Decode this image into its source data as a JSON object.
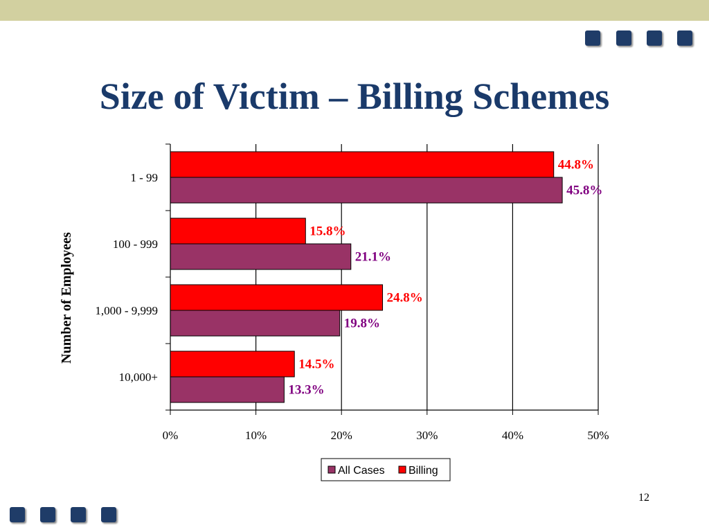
{
  "slide": {
    "title": "Size of Victim – Billing Schemes",
    "page_number": "12"
  },
  "colors": {
    "band": "#d2d0a0",
    "square": "#1f3c68",
    "title": "#1a3a6a",
    "billing": "#ff0000",
    "all_cases": "#993366",
    "billing_label": "#ff0000",
    "all_cases_label": "#800080"
  },
  "chart_data": {
    "type": "bar",
    "orientation": "horizontal",
    "categories": [
      "1 - 99",
      "100 - 999",
      "1,000 - 9,999",
      "10,000+"
    ],
    "series": [
      {
        "name": "Billing",
        "values": [
          44.8,
          15.8,
          24.8,
          14.5
        ],
        "labels": [
          "44.8%",
          "15.8%",
          "24.8%",
          "14.5%"
        ]
      },
      {
        "name": "All Cases",
        "values": [
          45.8,
          21.1,
          19.8,
          13.3
        ],
        "labels": [
          "45.8%",
          "21.1%",
          "19.8%",
          "13.3%"
        ]
      }
    ],
    "ylabel": "Number of Employees",
    "xlim": [
      0,
      50
    ],
    "x_ticks": [
      0,
      10,
      20,
      30,
      40,
      50
    ],
    "x_tick_labels": [
      "0%",
      "10%",
      "20%",
      "30%",
      "40%",
      "50%"
    ],
    "grid": true,
    "legend": {
      "position": "bottom",
      "entries": [
        "All Cases",
        "Billing"
      ]
    }
  }
}
